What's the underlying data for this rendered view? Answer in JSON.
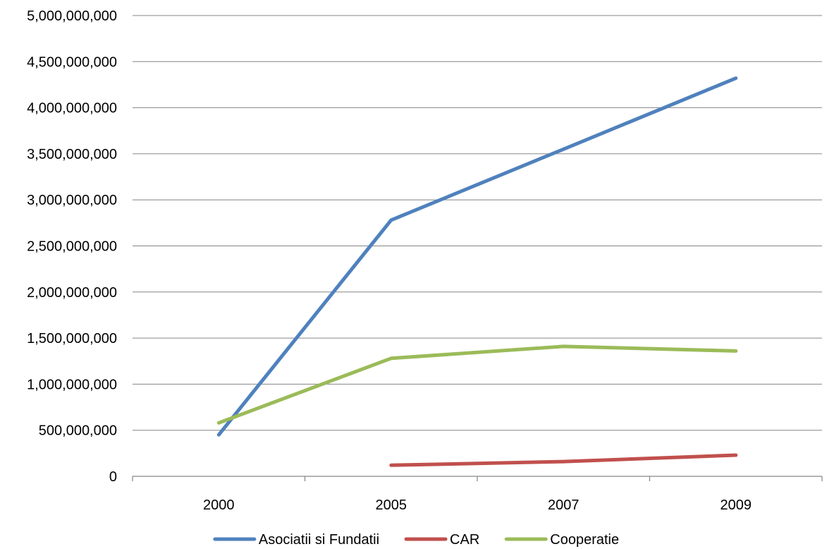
{
  "chart_data": {
    "type": "line",
    "categories": [
      "2000",
      "2005",
      "2007",
      "2009"
    ],
    "ylim": [
      0,
      5000000000
    ],
    "ytick_step": 500000000,
    "ytick_labels": [
      "0",
      "500,000,000",
      "1,000,000,000",
      "1,500,000,000",
      "2,000,000,000",
      "2,500,000,000",
      "3,000,000,000",
      "3,500,000,000",
      "4,000,000,000",
      "4,500,000,000",
      "5,000,000,000"
    ],
    "grid": true,
    "legend_position": "bottom",
    "series": [
      {
        "name": "Asociatii si Fundatii",
        "color": "#4F81BD",
        "values": [
          450000000,
          2780000000,
          3550000000,
          4320000000
        ]
      },
      {
        "name": "CAR",
        "color": "#C0504D",
        "values": [
          null,
          120000000,
          160000000,
          230000000
        ]
      },
      {
        "name": "Cooperatie",
        "color": "#9BBB59",
        "values": [
          580000000,
          1280000000,
          1410000000,
          1360000000
        ]
      }
    ]
  }
}
